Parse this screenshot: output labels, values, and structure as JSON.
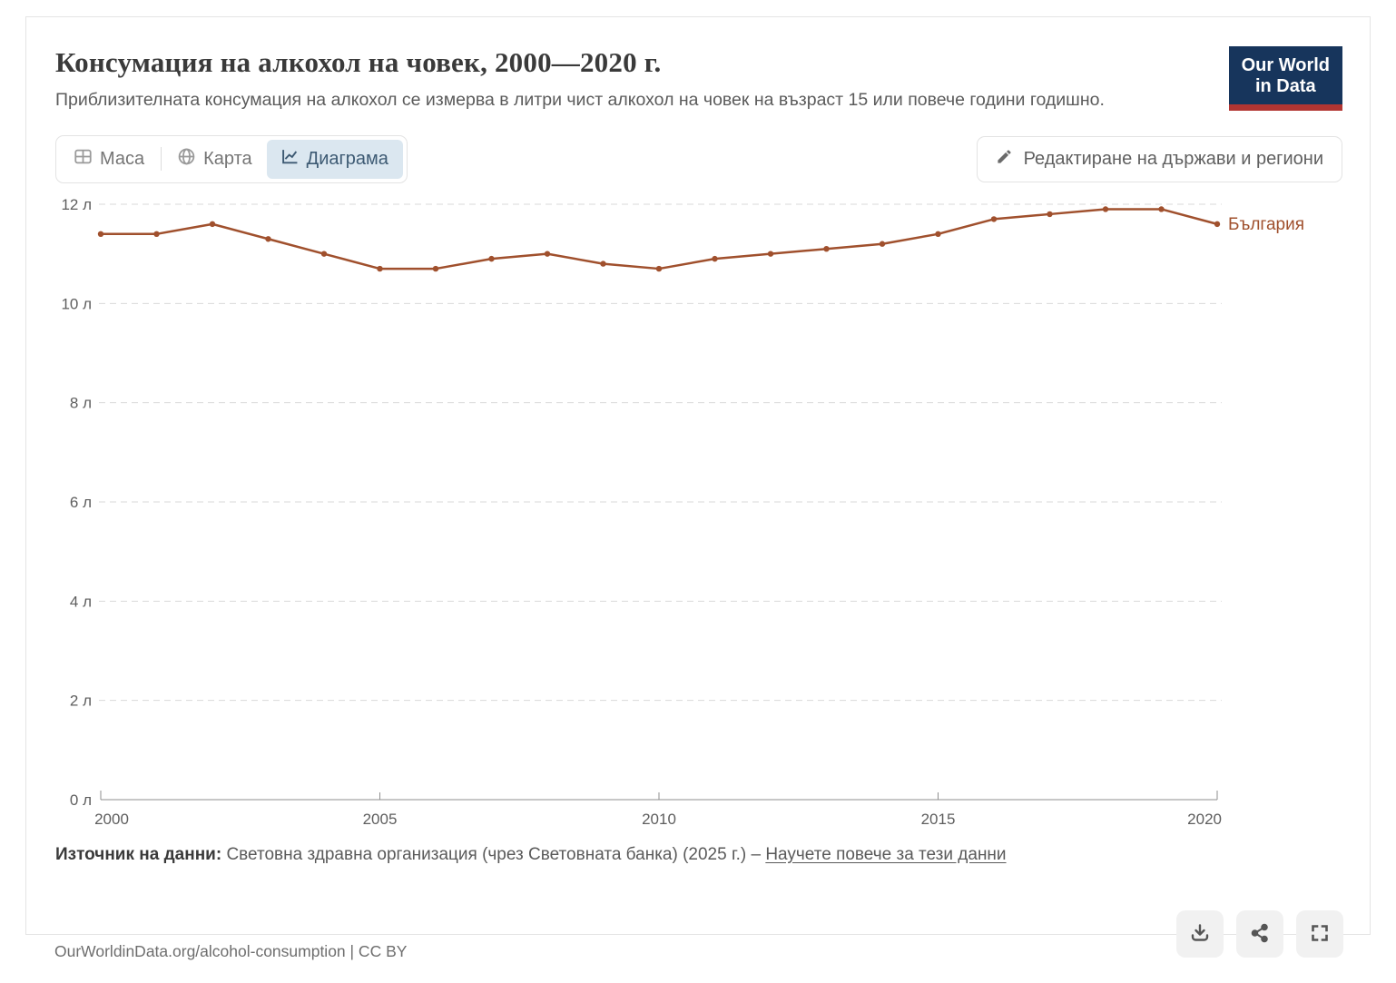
{
  "header": {
    "title": "Консумация на алкохол на човек, 2000—2020 г.",
    "subtitle": "Приблизителната консумация на алкохол се измерва в литри чист алкохол на човек на възраст 15 или повече години годишно.",
    "logo": {
      "line1": "Our World",
      "line2": "in Data"
    }
  },
  "controls": {
    "tabs": [
      {
        "label": "Маса",
        "icon": "table-icon",
        "active": false
      },
      {
        "label": "Карта",
        "icon": "globe-icon",
        "active": false
      },
      {
        "label": "Диаграма",
        "icon": "line-chart-icon",
        "active": true
      }
    ],
    "edit_button": "Редактиране на държави и региони"
  },
  "chart_data": {
    "type": "line",
    "title": "Консумация на алкохол на човек, 2000—2020 г.",
    "x": [
      2000,
      2001,
      2002,
      2003,
      2004,
      2005,
      2006,
      2007,
      2008,
      2009,
      2010,
      2011,
      2012,
      2013,
      2014,
      2015,
      2016,
      2017,
      2018,
      2019,
      2020
    ],
    "series": [
      {
        "name": "България",
        "color": "#A0502D",
        "values": [
          11.4,
          11.4,
          11.6,
          11.3,
          11.0,
          10.7,
          10.7,
          10.9,
          11.0,
          10.8,
          10.7,
          10.9,
          11.0,
          11.1,
          11.2,
          11.4,
          11.7,
          11.8,
          11.9,
          11.9,
          11.6
        ]
      }
    ],
    "xlabel": "",
    "ylabel": "",
    "ylim": [
      0,
      12
    ],
    "yticks": [
      0,
      2,
      4,
      6,
      8,
      10,
      12
    ],
    "ytick_unit": "л",
    "xticks": [
      2000,
      2005,
      2010,
      2015,
      2020
    ],
    "grid": "horizontal-dashed",
    "legend": "end-of-line-label"
  },
  "footer": {
    "source_label": "Източник на данни:",
    "source_text": "Световна здравна организация (чрез Световната банка) (2025 г.)",
    "dash": "–",
    "learn_more_link": "Научете повече за тези данни",
    "url_line": "OurWorldinData.org/alcohol-consumption | CC BY",
    "action_icons": [
      "download-icon",
      "share-icon",
      "fullscreen-icon"
    ]
  },
  "colors": {
    "series": "#A0502D",
    "active_tab_bg": "#dbe7f0",
    "active_tab_text": "#3d5a73",
    "logo_navy": "#17355c",
    "logo_red": "#b23532",
    "gridline": "#d9d9d9",
    "axis": "#8f8f8f",
    "card_border": "#e4e4e4"
  }
}
